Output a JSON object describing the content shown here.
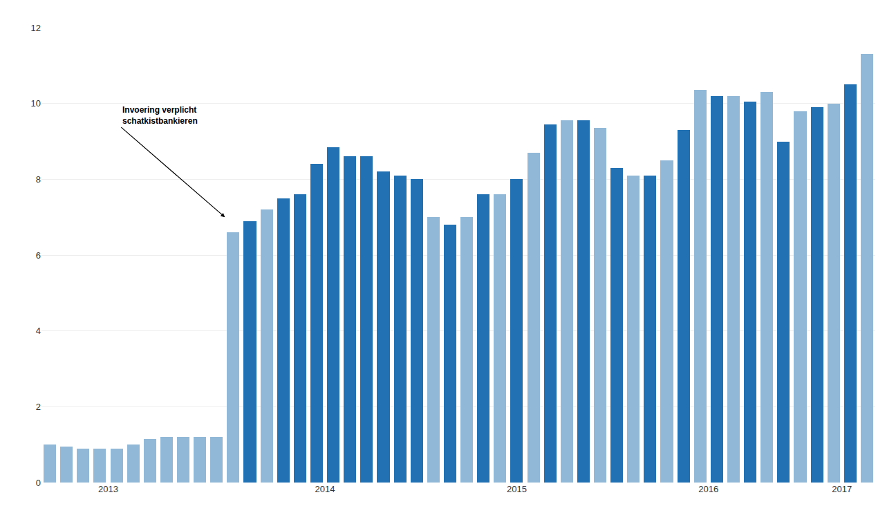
{
  "chart_data": {
    "type": "bar",
    "categories": [
      null,
      null,
      null,
      null,
      null,
      null,
      null,
      null,
      null,
      null,
      null,
      null,
      null,
      null,
      null,
      null,
      null,
      null,
      null,
      null,
      null,
      null,
      null,
      null,
      null,
      null,
      null,
      null,
      null,
      null,
      null,
      null,
      null,
      null,
      null,
      null,
      null,
      null,
      null,
      null,
      null,
      null,
      null,
      null,
      null,
      null,
      null,
      null,
      null,
      null
    ],
    "values": [
      1.0,
      0.95,
      0.9,
      0.9,
      0.9,
      1.0,
      1.15,
      1.2,
      1.2,
      1.2,
      1.2,
      6.6,
      6.9,
      7.2,
      7.5,
      7.6,
      8.4,
      8.85,
      8.6,
      8.6,
      8.2,
      8.1,
      8.0,
      7.0,
      6.8,
      7.0,
      7.6,
      7.6,
      8.0,
      8.7,
      9.45,
      9.55,
      9.55,
      9.35,
      8.3,
      8.1,
      8.1,
      8.5,
      9.3,
      10.35,
      10.2,
      10.2,
      10.05,
      10.3,
      9.0,
      9.8,
      9.9,
      10.0,
      10.5,
      11.3
    ],
    "colors": [
      "#92B8D8",
      "#92B8D8",
      "#92B8D8",
      "#92B8D8",
      "#92B8D8",
      "#92B8D8",
      "#92B8D8",
      "#92B8D8",
      "#92B8D8",
      "#92B8D8",
      "#92B8D8",
      "#92B8D8",
      "#2271B3",
      "#92B8D8",
      "#2271B3",
      "#2271B3",
      "#2271B3",
      "#2271B3",
      "#2271B3",
      "#2271B3",
      "#2271B3",
      "#2271B3",
      "#2271B3",
      "#92B8D8",
      "#2271B3",
      "#92B8D8",
      "#2271B3",
      "#92B8D8",
      "#2271B3",
      "#92B8D8",
      "#2271B3",
      "#92B8D8",
      "#2271B3",
      "#92B8D8",
      "#2271B3",
      "#92B8D8",
      "#2271B3",
      "#92B8D8",
      "#2271B3",
      "#92B8D8",
      "#2271B3",
      "#92B8D8",
      "#2271B3",
      "#92B8D8",
      "#2271B3",
      "#92B8D8",
      "#2271B3",
      "#92B8D8",
      "#2271B3",
      "#92B8D8"
    ],
    "xticks": [
      {
        "value": 3.5,
        "label": "2013"
      },
      {
        "value": 16.5,
        "label": "2014"
      },
      {
        "value": 28.0,
        "label": "2015"
      },
      {
        "value": 39.5,
        "label": "2016"
      },
      {
        "value": 47.5,
        "label": "2017"
      }
    ],
    "ylim": [
      0,
      12
    ],
    "yticks": [
      0,
      2,
      4,
      6,
      8,
      10,
      12
    ],
    "grid": true,
    "annotations": [
      {
        "text": "Invoering verplicht\nschatkistbankieren",
        "x": 10.5,
        "y": 7.0
      }
    ]
  }
}
